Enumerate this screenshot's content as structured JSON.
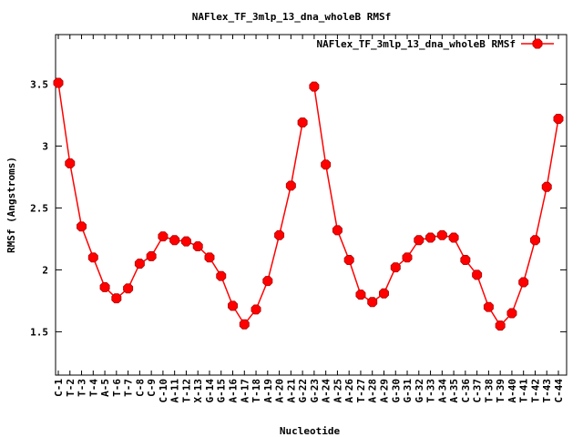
{
  "chart_data": {
    "type": "line",
    "title": "NAFlex_TF_3mlp_13_dna_wholeB RMSf",
    "xlabel": "Nucleotide",
    "ylabel": "RMSf (Angstroms)",
    "ylim": [
      1.15,
      3.9
    ],
    "yticks": [
      1.5,
      2,
      2.5,
      3,
      3.5
    ],
    "ytick_labels": [
      "1.5",
      "2",
      "2.5",
      "3",
      "3.5"
    ],
    "grid": false,
    "legend_position": "top-right",
    "series_color": "#ff0000",
    "categories": [
      "C-1",
      "T-2",
      "T-3",
      "T-4",
      "A-5",
      "T-6",
      "T-7",
      "C-8",
      "C-9",
      "C-10",
      "A-11",
      "T-12",
      "X-13",
      "G-14",
      "G-15",
      "A-16",
      "A-17",
      "T-18",
      "A-19",
      "A-20",
      "A-21",
      "G-22",
      "G-23",
      "A-24",
      "A-25",
      "A-26",
      "T-27",
      "A-28",
      "A-29",
      "G-30",
      "G-31",
      "G-32",
      "T-33",
      "A-34",
      "A-35",
      "C-36",
      "C-37",
      "T-38",
      "T-39",
      "A-40",
      "T-41",
      "T-42",
      "T-43",
      "C-44"
    ],
    "series": [
      {
        "name": "NAFlex_TF_3mlp_13_dna_wholeB RMSf",
        "segments": [
          {
            "start": 0,
            "values": [
              3.51,
              2.86,
              2.35,
              2.1,
              1.86,
              1.77,
              1.85,
              2.05,
              2.11,
              2.27,
              2.24,
              2.23,
              2.19,
              2.1,
              1.95,
              1.71,
              1.56,
              1.68,
              1.91,
              2.28,
              2.68,
              3.19
            ]
          },
          {
            "start": 22,
            "values": [
              3.48,
              2.85,
              2.32,
              2.08,
              1.8,
              1.74,
              1.81,
              2.02,
              2.1,
              2.24,
              2.26,
              2.28,
              2.26,
              2.08,
              1.96,
              1.7,
              1.55,
              1.65,
              1.9,
              2.24,
              2.67,
              3.22
            ]
          }
        ]
      }
    ]
  }
}
